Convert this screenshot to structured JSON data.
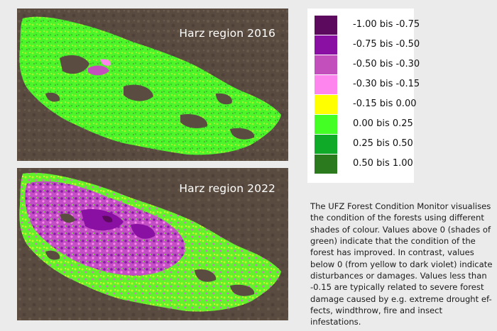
{
  "maps": {
    "top_title": "Harz region 2016",
    "bottom_title": "Harz region 2022"
  },
  "legend": {
    "items": [
      {
        "label": "-1.00 bis -0.75",
        "color": "#5c0a5e"
      },
      {
        "label": "-0.75 bis -0.50",
        "color": "#8a0fa3"
      },
      {
        "label": "-0.50 bis -0.30",
        "color": "#c34fbc"
      },
      {
        "label": "-0.30 bis -0.15",
        "color": "#ff85ee"
      },
      {
        "label": "-0.15 bis 0.00",
        "color": "#ffff00"
      },
      {
        "label": "0.00 bis 0.25",
        "color": "#44ff24"
      },
      {
        "label": "0.25 bis 0.50",
        "color": "#0faa28"
      },
      {
        "label": "0.50 bis 1.00",
        "color": "#2b7b1e"
      }
    ]
  },
  "caption": "The UFZ Forest Condition Monitor visualises the condition of the forests using different shades of colour. Values above 0 (shades of green) indicate that the condition of the forest has improved. In contrast, values below 0 (from yellow to dark violet) indicate disturbances or damages. Values less than -0.15 are typically related to severe forest damage caused by e.g. extreme drought ef-fects, windthrow, fire and insect infestations."
}
